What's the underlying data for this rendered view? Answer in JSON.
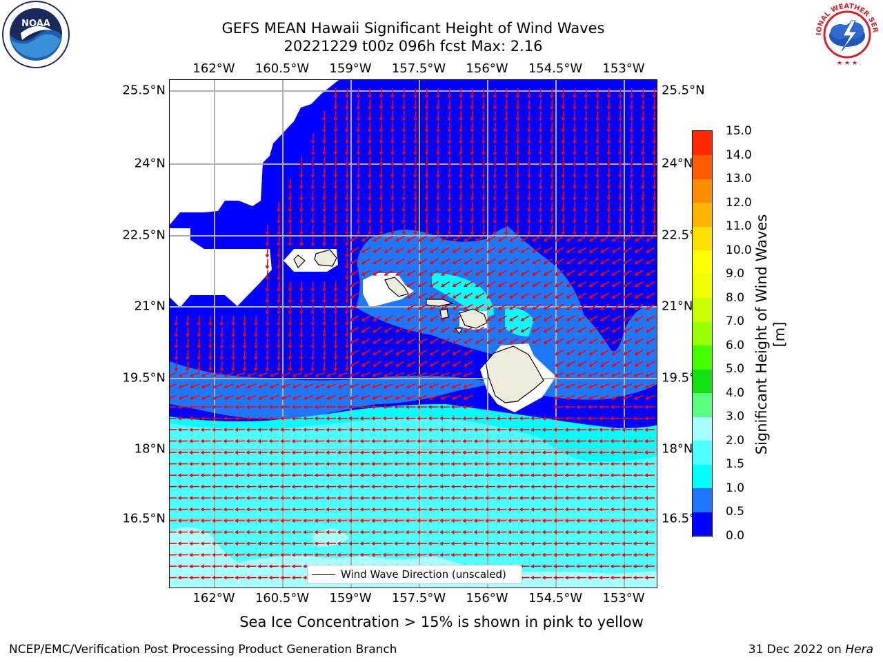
{
  "header": {
    "title_line1": "GEFS MEAN Hawaii Significant Height of Wind Waves",
    "title_line2": "20221229 t00z 096h fcst   Max: 2.16"
  },
  "logos": {
    "left": {
      "icon": "noaa-logo",
      "text": "NOAA",
      "colors": {
        "blue": "#1f5fa8",
        "navy": "#1b2a5c"
      }
    },
    "right": {
      "icon": "national-weather-service-logo",
      "text": "NATIONAL WEATHER SERVICE",
      "colors": {
        "red": "#d8202a",
        "blue": "#2255b8"
      }
    }
  },
  "map": {
    "lon_labels": [
      "162°W",
      "160.5°W",
      "159°W",
      "157.5°W",
      "156°W",
      "154.5°W",
      "153°W"
    ],
    "lon_values": [
      -162,
      -160.5,
      -159,
      -157.5,
      -156,
      -154.5,
      -153
    ],
    "lat_labels": [
      "25.5°N",
      "24°N",
      "22.5°N",
      "21°N",
      "19.5°N",
      "18°N",
      "16.5°N"
    ],
    "lat_values": [
      25.5,
      24,
      22.5,
      21,
      19.5,
      18,
      16.5
    ],
    "lon_range": [
      -163,
      -152.3
    ],
    "lat_range": [
      15.3,
      25.7
    ],
    "gridlines": true,
    "islands": [
      "Niihau",
      "Kauai",
      "Oahu",
      "Molokai",
      "Lanai",
      "Maui",
      "Kahoolawe",
      "Hawaii"
    ],
    "land_color": "#efebdc",
    "arrow_color": "#ff0000",
    "legend_text": "Wind Wave Direction (unscaled)",
    "legend_location": "bottom-center"
  },
  "colorbar": {
    "label": "Significant Height of Wind Waves [m]",
    "ticks": [
      "15.0",
      "14.0",
      "13.0",
      "12.0",
      "11.0",
      "10.0",
      "9.0",
      "8.0",
      "7.0",
      "6.0",
      "5.0",
      "4.0",
      "3.0",
      "2.0",
      "1.5",
      "1.0",
      "0.5",
      "0.0"
    ],
    "levels": [
      0.0,
      0.5,
      1.0,
      1.5,
      2.0,
      3.0,
      4.0,
      5.0,
      6.0,
      7.0,
      8.0,
      9.0,
      10.0,
      11.0,
      12.0,
      13.0,
      14.0,
      15.0
    ],
    "colors": [
      "#0000ff",
      "#1e78ff",
      "#00ffff",
      "#4effff",
      "#a8ffff",
      "#58ff80",
      "#10e010",
      "#44ff00",
      "#9cff00",
      "#c8ff00",
      "#f0ff00",
      "#ffff00",
      "#ffe000",
      "#ffb400",
      "#ff8c00",
      "#ff5a00",
      "#ff2800"
    ]
  },
  "chart_data": {
    "type": "heatmap",
    "title": "GEFS MEAN Hawaii Significant Height of Wind Waves",
    "subtitle": "20221229 t00z 096h fcst   Max: 2.16",
    "variable": "Significant Height of Wind Waves [m]",
    "max_value": 2.16,
    "regions": [
      {
        "area": "north and west of the islands",
        "range": "0.0-0.5",
        "wind_wave_direction": "southward"
      },
      {
        "area": "channels and lee of islands",
        "range": "0.5-1.5",
        "wind_wave_direction": "toward south-west"
      },
      {
        "area": "south of 19.5°N",
        "range": "1.0-2.16",
        "wind_wave_direction": "westward"
      }
    ],
    "xlabel": "",
    "ylabel": ""
  },
  "footer": {
    "note": "Sea Ice Concentration > 15% is shown in pink to yellow",
    "branch": "NCEP/EMC/Verification Post Processing Product Generation Branch",
    "date_prefix": "31 Dec 2022 on ",
    "machine": "Hera"
  }
}
